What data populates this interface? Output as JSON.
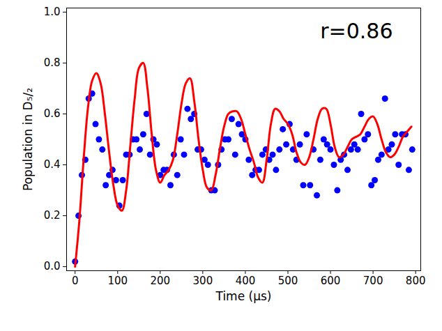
{
  "chart_data": {
    "type": "scatter",
    "x_label": "Time (μs)",
    "y_label": "Population in D₅/₂",
    "annotation": "r=0.86",
    "xlim": [
      -20,
      812
    ],
    "ylim": [
      -0.016,
      1.016
    ],
    "xticks": [
      0,
      100,
      200,
      300,
      400,
      500,
      600,
      700,
      800
    ],
    "yticks": [
      {
        "value": 0,
        "label": "0.0"
      },
      0.2,
      0.4,
      0.6,
      0.8,
      {
        "value": 1,
        "label": "1.0"
      }
    ],
    "grid": false,
    "series": [
      {
        "type": "scatter",
        "color": "#0000ff",
        "marker": "circle",
        "x": [
          0,
          8,
          16,
          24,
          32,
          40,
          48,
          56,
          64,
          72,
          80,
          88,
          96,
          104,
          112,
          120,
          128,
          136,
          144,
          152,
          160,
          168,
          176,
          184,
          192,
          200,
          208,
          216,
          224,
          232,
          240,
          248,
          256,
          264,
          272,
          280,
          288,
          296,
          304,
          312,
          320,
          328,
          336,
          344,
          352,
          360,
          368,
          376,
          384,
          392,
          400,
          408,
          416,
          424,
          432,
          440,
          448,
          456,
          464,
          472,
          480,
          488,
          496,
          504,
          512,
          520,
          528,
          536,
          544,
          552,
          560,
          568,
          576,
          584,
          592,
          600,
          608,
          616,
          624,
          632,
          640,
          648,
          656,
          664,
          672,
          680,
          688,
          696,
          704,
          712,
          720,
          728,
          736,
          744,
          752,
          760,
          768,
          776,
          784,
          792
        ],
        "values": [
          0.02,
          0.2,
          0.36,
          0.42,
          0.66,
          0.68,
          0.56,
          0.5,
          0.46,
          0.32,
          0.36,
          0.38,
          0.34,
          0.24,
          0.34,
          0.44,
          0.44,
          0.5,
          0.5,
          0.46,
          0.52,
          0.6,
          0.44,
          0.5,
          0.48,
          0.36,
          0.38,
          0.38,
          0.32,
          0.44,
          0.36,
          0.5,
          0.44,
          0.62,
          0.58,
          0.6,
          0.46,
          0.46,
          0.42,
          0.4,
          0.3,
          0.3,
          0.4,
          0.46,
          0.5,
          0.5,
          0.58,
          0.44,
          0.56,
          0.52,
          0.5,
          0.42,
          0.36,
          0.38,
          0.38,
          0.44,
          0.46,
          0.42,
          0.44,
          0.38,
          0.46,
          0.54,
          0.48,
          0.56,
          0.46,
          0.42,
          0.48,
          0.32,
          0.52,
          0.32,
          0.46,
          0.28,
          0.42,
          0.5,
          0.48,
          0.46,
          0.4,
          0.3,
          0.42,
          0.44,
          0.38,
          0.46,
          0.48,
          0.46,
          0.6,
          0.5,
          0.52,
          0.32,
          0.34,
          0.42,
          0.44,
          0.66,
          0.46,
          0.48,
          0.52,
          0.4,
          0.52,
          0.52,
          0.38,
          0.46
        ]
      },
      {
        "type": "line",
        "color": "#ff0000",
        "line_style": "solid",
        "x": [
          0,
          10,
          20,
          30,
          40,
          50,
          60,
          70,
          80,
          90,
          100,
          110,
          120,
          130,
          140,
          150,
          160,
          170,
          180,
          190,
          200,
          210,
          220,
          230,
          240,
          250,
          260,
          270,
          280,
          290,
          300,
          310,
          320,
          330,
          340,
          350,
          360,
          370,
          380,
          390,
          400,
          410,
          420,
          430,
          440,
          450,
          460,
          470,
          480,
          490,
          500,
          510,
          520,
          530,
          540,
          550,
          560,
          570,
          580,
          590,
          600,
          610,
          620,
          630,
          640,
          650,
          660,
          670,
          680,
          690,
          700,
          710,
          720,
          730,
          740,
          750,
          760,
          770,
          780,
          790
        ],
        "values": [
          0.0,
          0.18,
          0.42,
          0.62,
          0.73,
          0.76,
          0.72,
          0.6,
          0.45,
          0.32,
          0.24,
          0.22,
          0.3,
          0.48,
          0.66,
          0.78,
          0.8,
          0.7,
          0.52,
          0.38,
          0.33,
          0.36,
          0.38,
          0.42,
          0.52,
          0.64,
          0.72,
          0.74,
          0.65,
          0.5,
          0.38,
          0.31,
          0.3,
          0.36,
          0.46,
          0.55,
          0.6,
          0.61,
          0.61,
          0.58,
          0.52,
          0.46,
          0.41,
          0.35,
          0.33,
          0.42,
          0.56,
          0.62,
          0.61,
          0.58,
          0.56,
          0.52,
          0.45,
          0.41,
          0.4,
          0.43,
          0.5,
          0.58,
          0.62,
          0.62,
          0.56,
          0.47,
          0.43,
          0.44,
          0.47,
          0.5,
          0.51,
          0.52,
          0.55,
          0.58,
          0.59,
          0.56,
          0.5,
          0.45,
          0.43,
          0.44,
          0.47,
          0.51,
          0.53,
          0.55
        ]
      }
    ]
  }
}
